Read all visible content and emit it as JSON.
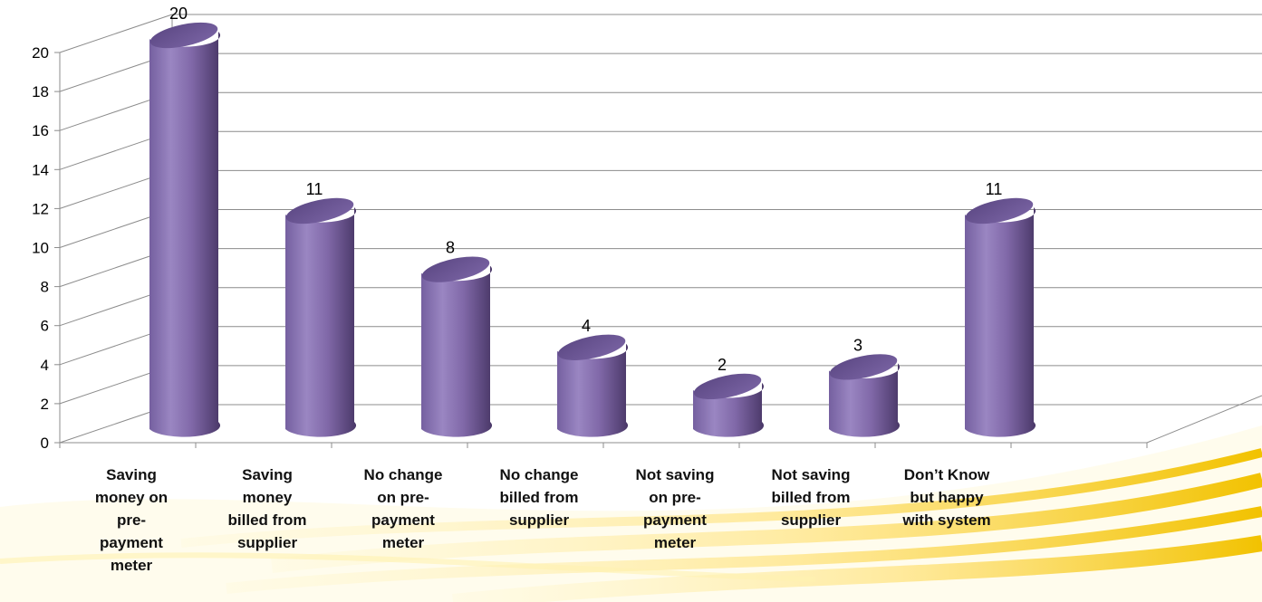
{
  "colors": {
    "bar_front": "#8068a8",
    "bar_light": "#9a86c2",
    "bar_dark": "#4e3c70",
    "bar_top": "#6a5494",
    "grid": "#8c8c8c",
    "swoosh": "#f4c400"
  },
  "chart_data": {
    "type": "bar",
    "title": "",
    "xlabel": "",
    "ylabel": "",
    "ylim": [
      0,
      20
    ],
    "yticks": [
      "0",
      "2",
      "4",
      "6",
      "8",
      "10",
      "12",
      "14",
      "16",
      "18",
      "20"
    ],
    "grid": true,
    "legend": "none",
    "categories": [
      "Saving money on pre-payment meter",
      "Saving money billed from supplier",
      "No change on pre-payment meter",
      "No change billed from supplier",
      "Not saving on pre-payment meter",
      "Not saving billed from supplier",
      "Don’t Know but happy with system"
    ],
    "category_lines": [
      "Saving\nmoney on\npre-\npayment\nmeter",
      "Saving\nmoney\nbilled from\nsupplier",
      "No change\non pre-\npayment\nmeter",
      "No change\nbilled from\nsupplier",
      "Not saving\non pre-\npayment\nmeter",
      "Not saving\nbilled from\nsupplier",
      "Don’t Know\nbut happy\nwith system"
    ],
    "values": [
      20,
      11,
      8,
      4,
      2,
      3,
      11
    ],
    "data_labels": [
      "20",
      "11",
      "8",
      "4",
      "2",
      "3",
      "11"
    ]
  }
}
